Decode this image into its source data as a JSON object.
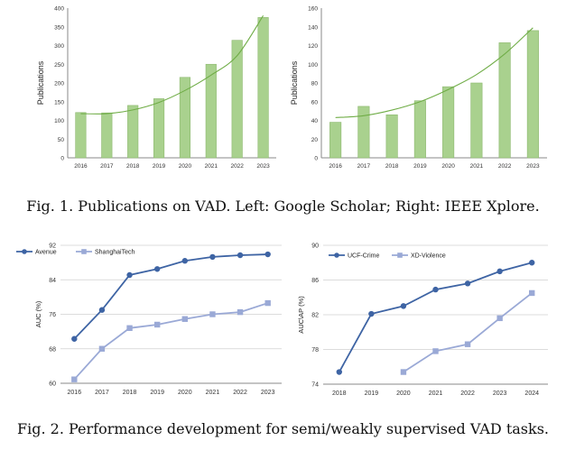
{
  "captions": {
    "fig1": "Fig. 1.  Publications on VAD. Left: Google Scholar; Right: IEEE Xplore.",
    "fig2": "Fig. 2.  Performance development for semi/weakly supervised VAD tasks."
  },
  "colors": {
    "bar_fill": "#a9d18e",
    "bar_stroke": "#8db86f",
    "trend": "#70ad47",
    "series_dark": "#3e64a4",
    "series_light": "#9aa9d6",
    "axis": "#8a8a8a",
    "grid": "#d0d0d0"
  },
  "chart_data": [
    {
      "type": "bar",
      "title": "",
      "xlabel": "",
      "ylabel": "Publications",
      "categories": [
        "2016",
        "2017",
        "2018",
        "2019",
        "2020",
        "2021",
        "2022",
        "2023"
      ],
      "values": [
        121,
        120,
        140,
        158,
        215,
        250,
        314,
        375
      ],
      "ylim": [
        0,
        400
      ],
      "yticks": [
        0,
        50,
        100,
        150,
        200,
        250,
        300,
        350,
        400
      ],
      "trendline": "polynomial",
      "trend_points": [
        118,
        118,
        128,
        148,
        180,
        221,
        273,
        380
      ],
      "grid": false
    },
    {
      "type": "bar",
      "title": "",
      "xlabel": "",
      "ylabel": "Publications",
      "categories": [
        "2016",
        "2017",
        "2018",
        "2019",
        "2020",
        "2021",
        "2022",
        "2023"
      ],
      "values": [
        38,
        55,
        46,
        61,
        76,
        80,
        123,
        136
      ],
      "ylim": [
        0,
        160
      ],
      "yticks": [
        0,
        20,
        40,
        60,
        80,
        100,
        120,
        140,
        160
      ],
      "trendline": "polynomial",
      "trend_points": [
        43,
        45,
        51,
        60,
        73,
        89,
        111,
        139
      ],
      "grid": false
    },
    {
      "type": "line",
      "title": "",
      "xlabel": "",
      "ylabel": "AUC (%)",
      "x": [
        "2016",
        "2017",
        "2018",
        "2019",
        "2020",
        "2021",
        "2022",
        "2023"
      ],
      "series": [
        {
          "name": "Avenue",
          "values": [
            70.3,
            77.0,
            85.1,
            86.5,
            88.4,
            89.3,
            89.7,
            89.9
          ]
        },
        {
          "name": "ShanghaiTech",
          "values": [
            60.9,
            68.0,
            72.8,
            73.6,
            74.9,
            76.0,
            76.5,
            78.6
          ]
        }
      ],
      "ylim": [
        60,
        92
      ],
      "yticks": [
        60,
        68,
        76,
        84,
        92
      ],
      "legend": "top-left",
      "grid": true
    },
    {
      "type": "line",
      "title": "",
      "xlabel": "",
      "ylabel": "AUC\\AP (%)",
      "x": [
        "2018",
        "2019",
        "2020",
        "2021",
        "2022",
        "2023",
        "2024"
      ],
      "series": [
        {
          "name": "UCF-Crime",
          "values": [
            75.4,
            82.1,
            83.0,
            84.9,
            85.6,
            87.0,
            88.0
          ]
        },
        {
          "name": "XD-Violence",
          "values": [
            null,
            null,
            75.4,
            77.8,
            78.6,
            81.6,
            84.5
          ]
        }
      ],
      "ylim": [
        74,
        90
      ],
      "yticks": [
        74,
        78,
        82,
        86,
        90
      ],
      "legend": "top-left",
      "grid": true
    }
  ]
}
